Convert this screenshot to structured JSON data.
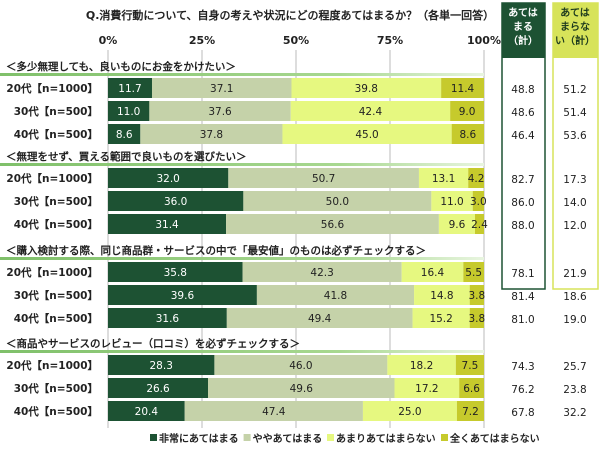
{
  "chart_data": {
    "type": "bar",
    "orientation": "horizontal",
    "stacked": true,
    "title": "Q.消費行動について、自身の考えや状況にどの程度あてはまるか？（各単一回答）",
    "xlim": [
      0,
      100
    ],
    "ticks": [
      "0%",
      "25%",
      "50%",
      "75%",
      "100%"
    ],
    "legend_position": "bottom",
    "series": [
      {
        "name": "非常にあてはまる",
        "color": "#1d5233"
      },
      {
        "name": "ややあてはまる",
        "color": "#c5d2a9"
      },
      {
        "name": "あまりあてはまらない",
        "color": "#e6f880"
      },
      {
        "name": "全くあてはまらない",
        "color": "#c6ca2c"
      }
    ],
    "summary_headers": [
      "あてはまる（計）",
      "あてはまらない（計）"
    ],
    "groups": [
      {
        "title": "＜多少無理しても、良いものにお金をかけたい＞",
        "rows": [
          {
            "label": "20代【n=1000】",
            "values": [
              11.7,
              37.1,
              39.8,
              11.4
            ],
            "agree": "48.8",
            "disagree": "51.2"
          },
          {
            "label": "30代【n=500】",
            "values": [
              11.0,
              37.6,
              42.4,
              9.0
            ],
            "agree": "48.6",
            "disagree": "51.4"
          },
          {
            "label": "40代【n=500】",
            "values": [
              8.6,
              37.8,
              45.0,
              8.6
            ],
            "agree": "46.4",
            "disagree": "53.6"
          }
        ]
      },
      {
        "title": "＜無理をせず、買える範囲で良いものを選びたい＞",
        "rows": [
          {
            "label": "20代【n=1000】",
            "values": [
              32.0,
              50.7,
              13.1,
              4.2
            ],
            "agree": "82.7",
            "disagree": "17.3"
          },
          {
            "label": "30代【n=500】",
            "values": [
              36.0,
              50.0,
              11.0,
              3.0
            ],
            "agree": "86.0",
            "disagree": "14.0"
          },
          {
            "label": "40代【n=500】",
            "values": [
              31.4,
              56.6,
              9.6,
              2.4
            ],
            "agree": "88.0",
            "disagree": "12.0"
          }
        ]
      },
      {
        "title": "＜購入検討する際、同じ商品群・サービスの中で「最安値」のものは必ずチェックする＞",
        "rows": [
          {
            "label": "20代【n=1000】",
            "values": [
              35.8,
              42.3,
              16.4,
              5.5
            ],
            "agree": "78.1",
            "disagree": "21.9"
          },
          {
            "label": "30代【n=500】",
            "values": [
              39.6,
              41.8,
              14.8,
              3.8
            ],
            "agree": "81.4",
            "disagree": "18.6"
          },
          {
            "label": "40代【n=500】",
            "values": [
              31.6,
              49.4,
              15.2,
              3.8
            ],
            "agree": "81.0",
            "disagree": "19.0"
          }
        ]
      },
      {
        "title": "＜商品やサービスのレビュー（口コミ）を必ずチェックする＞",
        "rows": [
          {
            "label": "20代【n=1000】",
            "values": [
              28.3,
              46.0,
              18.2,
              7.5
            ],
            "agree": "74.3",
            "disagree": "25.7"
          },
          {
            "label": "30代【n=500】",
            "values": [
              26.6,
              49.6,
              17.2,
              6.6
            ],
            "agree": "76.2",
            "disagree": "23.8"
          },
          {
            "label": "40代【n=500】",
            "values": [
              20.4,
              47.4,
              25.0,
              7.2
            ],
            "agree": "67.8",
            "disagree": "32.2"
          }
        ]
      }
    ]
  }
}
